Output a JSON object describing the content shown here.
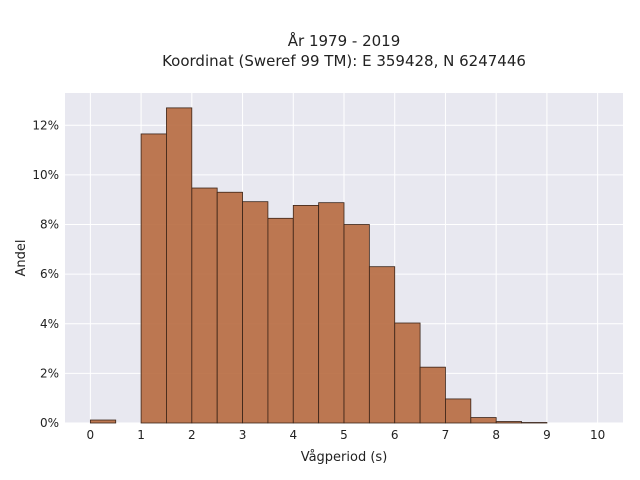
{
  "chart_data": {
    "type": "bar",
    "title_line1": "År 1979 - 2019",
    "title_line2": "Koordinat (Sweref 99 TM): E 359428, N 6247446",
    "xlabel": "Vågperiod (s)",
    "ylabel": "Andel",
    "bin_width": 0.5,
    "bins": [
      {
        "start": 0.0,
        "end": 0.5,
        "value": 0.12
      },
      {
        "start": 0.5,
        "end": 1.0,
        "value": 0.0
      },
      {
        "start": 1.0,
        "end": 1.5,
        "value": 11.65
      },
      {
        "start": 1.5,
        "end": 2.0,
        "value": 12.7
      },
      {
        "start": 2.0,
        "end": 2.5,
        "value": 9.47
      },
      {
        "start": 2.5,
        "end": 3.0,
        "value": 9.3
      },
      {
        "start": 3.0,
        "end": 3.5,
        "value": 8.92
      },
      {
        "start": 3.5,
        "end": 4.0,
        "value": 8.25
      },
      {
        "start": 4.0,
        "end": 4.5,
        "value": 8.77
      },
      {
        "start": 4.5,
        "end": 5.0,
        "value": 8.88
      },
      {
        "start": 5.0,
        "end": 5.5,
        "value": 8.0
      },
      {
        "start": 5.5,
        "end": 6.0,
        "value": 6.3
      },
      {
        "start": 6.0,
        "end": 6.5,
        "value": 4.03
      },
      {
        "start": 6.5,
        "end": 7.0,
        "value": 2.25
      },
      {
        "start": 7.0,
        "end": 7.5,
        "value": 0.97
      },
      {
        "start": 7.5,
        "end": 8.0,
        "value": 0.22
      },
      {
        "start": 8.0,
        "end": 8.5,
        "value": 0.06
      },
      {
        "start": 8.5,
        "end": 9.0,
        "value": 0.02
      },
      {
        "start": 9.0,
        "end": 9.5,
        "value": 0.0
      },
      {
        "start": 9.5,
        "end": 10.0,
        "value": 0.0
      }
    ],
    "xlim": [
      -0.5,
      10.5
    ],
    "ylim": [
      0,
      13.3
    ],
    "xticks": [
      0,
      1,
      2,
      3,
      4,
      5,
      6,
      7,
      8,
      9,
      10
    ],
    "xtick_labels": [
      "0",
      "1",
      "2",
      "3",
      "4",
      "5",
      "6",
      "7",
      "8",
      "9",
      "10"
    ],
    "yticks": [
      0,
      2,
      4,
      6,
      8,
      10,
      12
    ],
    "ytick_labels": [
      "0%",
      "2%",
      "4%",
      "6%",
      "8%",
      "10%",
      "12%"
    ],
    "grid": true,
    "colors": {
      "bar_fill": "#b5663a",
      "bar_edge": "#3a2418",
      "plot_background": "#e8e8f0",
      "grid": "#ffffff"
    }
  }
}
